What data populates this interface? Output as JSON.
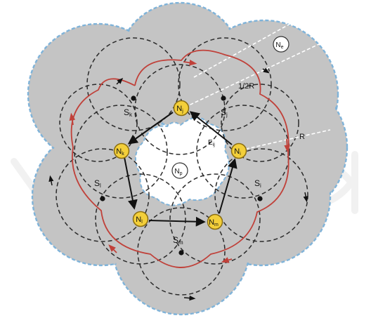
{
  "diagram": {
    "labels": {
      "outer_region": "N",
      "outer_region_sub": "e",
      "inner_region": "N",
      "inner_region_sub": "p",
      "half_radius": "1/2R",
      "radius": "R",
      "edge": "E",
      "edge_sub": "ij"
    },
    "nodes": [
      {
        "id": "Nj",
        "main": "N",
        "sub": "j"
      },
      {
        "id": "Ni",
        "main": "N",
        "sub": "i"
      },
      {
        "id": "Nm",
        "main": "N",
        "sub": "m"
      },
      {
        "id": "Nl",
        "main": "N",
        "sub": "l"
      },
      {
        "id": "Nk",
        "main": "N",
        "sub": "k"
      }
    ],
    "sensors": [
      {
        "id": "Sk",
        "main": "S",
        "sub": "k"
      },
      {
        "id": "Sj",
        "main": "S",
        "sub": "j"
      },
      {
        "id": "Si",
        "main": "S",
        "sub": "i"
      },
      {
        "id": "Sm",
        "main": "S",
        "sub": "m"
      },
      {
        "id": "Sl",
        "main": "S",
        "sub": "l"
      }
    ],
    "colors": {
      "region_fill": "#c4c4c4",
      "boundary": "#7fb3d9",
      "node_fill": "#f3cf3a",
      "node_stroke": "#8a6d10",
      "red_path": "#c0413a",
      "dashed": "#2b2b2b",
      "watermark": "#e8e8e8"
    }
  }
}
